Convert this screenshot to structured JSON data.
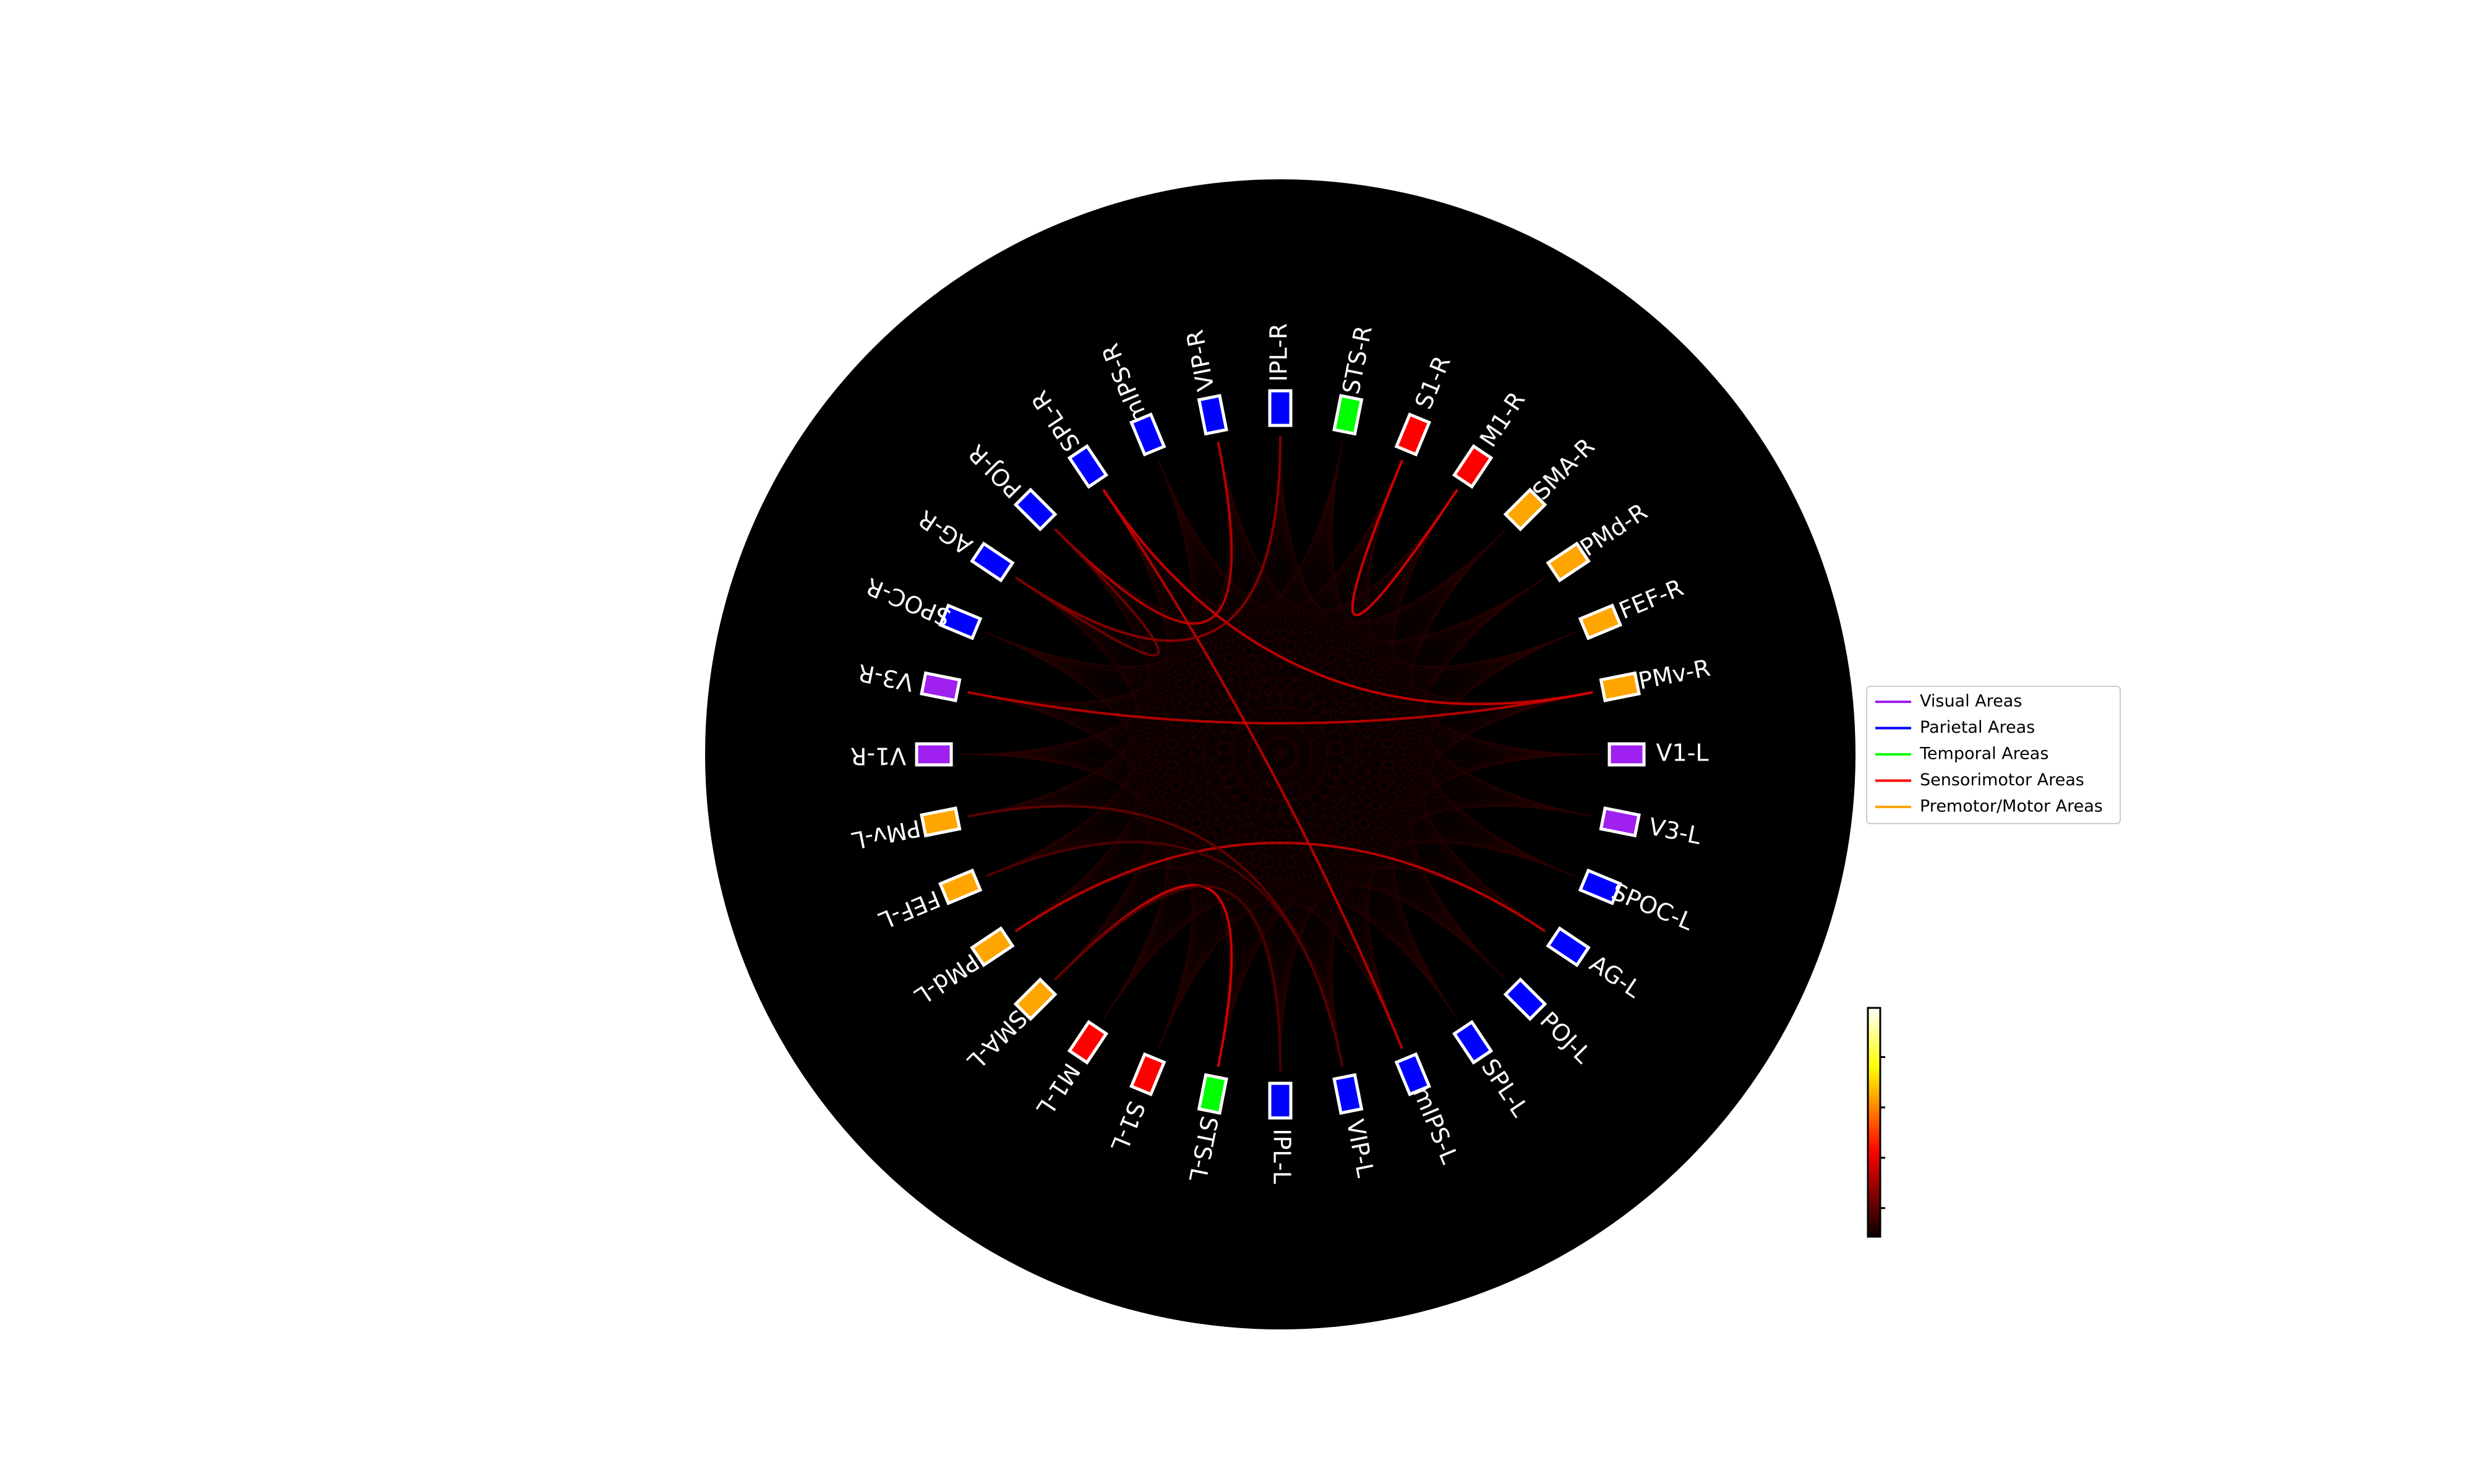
{
  "nodes": [
    {
      "label": "V1-L",
      "group": "visual"
    },
    {
      "label": "V3-L",
      "group": "visual"
    },
    {
      "label": "SPOC-L",
      "group": "parietal"
    },
    {
      "label": "AG-L",
      "group": "parietal"
    },
    {
      "label": "POJ-L",
      "group": "parietal"
    },
    {
      "label": "SPL-L",
      "group": "parietal"
    },
    {
      "label": "mIPS-L",
      "group": "parietal"
    },
    {
      "label": "VIP-L",
      "group": "parietal"
    },
    {
      "label": "IPL-L",
      "group": "parietal"
    },
    {
      "label": "STS-L",
      "group": "temporal"
    },
    {
      "label": "S1-L",
      "group": "sensorimotor"
    },
    {
      "label": "M1-L",
      "group": "sensorimotor"
    },
    {
      "label": "SMA-L",
      "group": "premotor"
    },
    {
      "label": "PMd-L",
      "group": "premotor"
    },
    {
      "label": "FEF-L",
      "group": "premotor"
    },
    {
      "label": "PMv-L",
      "group": "premotor"
    },
    {
      "label": "V1-R",
      "group": "visual"
    },
    {
      "label": "V3-R",
      "group": "visual"
    },
    {
      "label": "SPOC-R",
      "group": "parietal"
    },
    {
      "label": "AG-R",
      "group": "parietal"
    },
    {
      "label": "POJ-R",
      "group": "parietal"
    },
    {
      "label": "SPL-R",
      "group": "parietal"
    },
    {
      "label": "mIPS-R",
      "group": "parietal"
    },
    {
      "label": "VIP-R",
      "group": "parietal"
    },
    {
      "label": "IPL-R",
      "group": "parietal"
    },
    {
      "label": "STS-R",
      "group": "temporal"
    },
    {
      "label": "S1-R",
      "group": "sensorimotor"
    },
    {
      "label": "M1-R",
      "group": "sensorimotor"
    },
    {
      "label": "SMA-R",
      "group": "premotor"
    },
    {
      "label": "PMd-R",
      "group": "premotor"
    },
    {
      "label": "FEF-R",
      "group": "premotor"
    },
    {
      "label": "PMv-R",
      "group": "premotor"
    }
  ],
  "strong_connections": [
    {
      "source": "SMA-L",
      "target": "STS-L",
      "strength": 0.35
    },
    {
      "source": "PMd-L",
      "target": "AG-L",
      "strength": 0.3
    },
    {
      "source": "V3-R",
      "target": "PMv-R",
      "strength": 0.3
    },
    {
      "source": "SPL-R",
      "target": "PMv-R",
      "strength": 0.32
    },
    {
      "source": "mIPS-L",
      "target": "SPL-R",
      "strength": 0.3
    },
    {
      "source": "POJ-R",
      "target": "VIP-R",
      "strength": 0.3
    },
    {
      "source": "S1-R",
      "target": "M1-R",
      "strength": 0.35
    },
    {
      "source": "IPL-R",
      "target": "AG-R",
      "strength": 0.22
    },
    {
      "source": "POJ-R",
      "target": "AG-R",
      "strength": 0.18
    },
    {
      "source": "PMv-L",
      "target": "VIP-L",
      "strength": 0.15
    },
    {
      "source": "FEF-L",
      "target": "VIP-L",
      "strength": 0.12
    },
    {
      "source": "SMA-L",
      "target": "IPL-L",
      "strength": 0.12
    }
  ],
  "legend": [
    {
      "label": "Visual Areas",
      "color": "#a020f0"
    },
    {
      "label": "Parietal Areas",
      "color": "#0000ff"
    },
    {
      "label": "Temporal Areas",
      "color": "#00ff00"
    },
    {
      "label": "Sensorimotor Areas",
      "color": "#ff0000"
    },
    {
      "label": "Premotor/Motor Areas",
      "color": "#ffa500"
    }
  ],
  "group_colors": {
    "visual": "#a020f0",
    "parietal": "#0000ff",
    "temporal": "#00ff00",
    "sensorimotor": "#ff0000",
    "premotor": "#ffa500"
  },
  "background_color": "#000000",
  "colormap": "hot"
}
